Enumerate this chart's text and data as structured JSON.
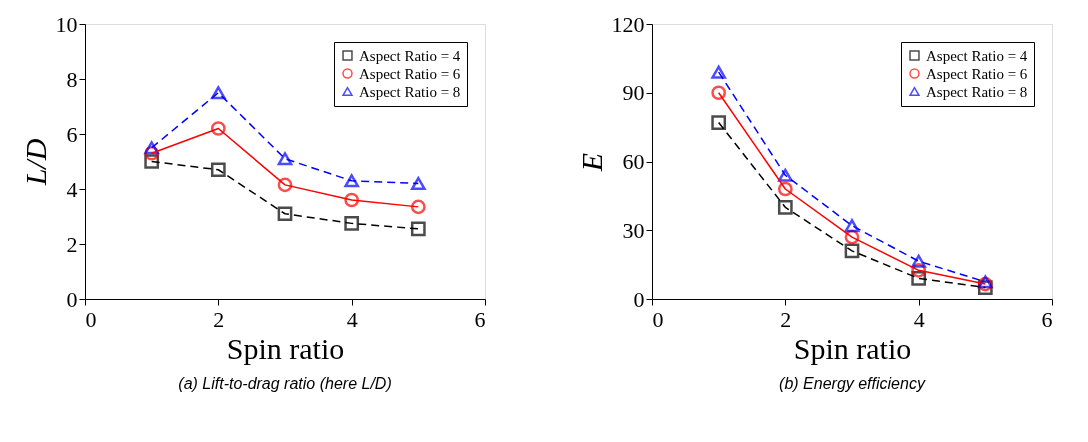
{
  "chart_data": [
    {
      "type": "line",
      "xlabel": "Spin ratio",
      "ylabel": "L/D",
      "x": [
        1,
        2,
        3,
        4,
        5
      ],
      "xlim": [
        0,
        6
      ],
      "xticks": [
        0,
        2,
        4,
        6
      ],
      "ylim": [
        0,
        10
      ],
      "yticks": [
        0,
        2,
        4,
        6,
        8,
        10
      ],
      "grid": false,
      "legend": "top right",
      "annotations": [
        "(a) Lift-to-drag ratio (here L/D)"
      ],
      "series": [
        {
          "name": "Aspect Ratio = 4",
          "color": "#000000",
          "marker": "square",
          "line_style": "dashed",
          "values": [
            5.0,
            4.7,
            3.1,
            2.75,
            2.55
          ]
        },
        {
          "name": "Aspect Ratio = 6",
          "color": "#ff0000",
          "marker": "circle",
          "line_style": "solid",
          "values": [
            5.3,
            6.2,
            4.15,
            3.6,
            3.35
          ]
        },
        {
          "name": "Aspect Ratio = 8",
          "color": "#0000ff",
          "marker": "triangle",
          "line_style": "dashed",
          "values": [
            5.5,
            7.5,
            5.1,
            4.3,
            4.2
          ]
        }
      ]
    },
    {
      "type": "line",
      "xlabel": "Spin ratio",
      "ylabel": "E",
      "x": [
        1,
        2,
        3,
        4,
        5
      ],
      "xlim": [
        0,
        6
      ],
      "xticks": [
        0,
        2,
        4,
        6
      ],
      "ylim": [
        0,
        120
      ],
      "yticks": [
        0,
        30,
        60,
        90,
        120
      ],
      "grid": false,
      "legend": "top right",
      "annotations": [
        "(b) Energy efficiency"
      ],
      "series": [
        {
          "name": "Aspect Ratio = 4",
          "color": "#000000",
          "marker": "square",
          "line_style": "dashed",
          "values": [
            77,
            40,
            21,
            9,
            5
          ]
        },
        {
          "name": "Aspect Ratio = 6",
          "color": "#ff0000",
          "marker": "circle",
          "line_style": "solid",
          "values": [
            90,
            48,
            27,
            12.5,
            6.5
          ]
        },
        {
          "name": "Aspect Ratio = 8",
          "color": "#0000ff",
          "marker": "triangle",
          "line_style": "dashed",
          "values": [
            99,
            54,
            32,
            16.5,
            7.5
          ]
        }
      ]
    }
  ]
}
